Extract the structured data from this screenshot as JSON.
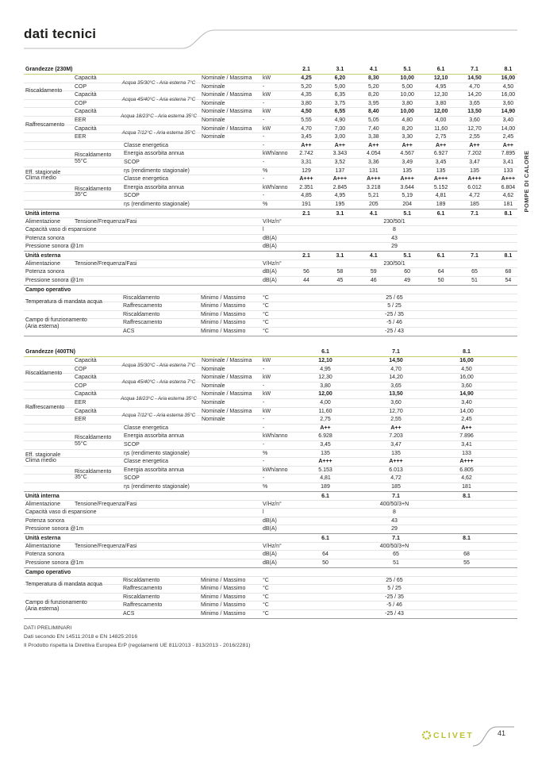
{
  "page": {
    "title": "dati tecnici",
    "side_tab": "POMPE DI CALORE",
    "brand": "CLIVET",
    "page_number": "41",
    "accent_color": "#bcc22f",
    "notes": [
      "DATI PRELIMINARI",
      "Dati secondo EN 14511:2018 e EN 14825:2016",
      "Il Prodotto rispetta la Direttiva Europea ErP (regolamenti UE 811/2013 - 813/2013 - 2016/2281)"
    ]
  },
  "tables": [
    {
      "title": "Grandezze (230M)",
      "columns": [
        "2.1",
        "3.1",
        "4.1",
        "5.1",
        "6.1",
        "7.1",
        "8.1"
      ],
      "groups": [
        "Riscaldamento",
        "Raffrescamento"
      ],
      "conditions": [
        "Acqua 35/30°C - Aria esterna 7°C",
        "Acqua 45/40°C - Aria esterna 7°C",
        "Acqua 18/23°C - Aria esterna 35°C",
        "Acqua 7/12°C - Aria esterna 35°C"
      ],
      "perf_rows": [
        {
          "prop": "Capacità",
          "mode": "Nominale / Massima",
          "unit": "kW",
          "bold": true,
          "values": [
            "4,25",
            "6,20",
            "8,30",
            "10,00",
            "12,10",
            "14,50",
            "16,00"
          ]
        },
        {
          "prop": "COP",
          "mode": "Nominale",
          "unit": "-",
          "bold": false,
          "values": [
            "5,20",
            "5,00",
            "5,20",
            "5,00",
            "4,95",
            "4,70",
            "4,50"
          ]
        },
        {
          "prop": "Capacità",
          "mode": "Nominale / Massima",
          "unit": "kW",
          "bold": false,
          "values": [
            "4,35",
            "6,35",
            "8,20",
            "10,00",
            "12,30",
            "14,20",
            "16,00"
          ]
        },
        {
          "prop": "COP",
          "mode": "Nominale",
          "unit": "-",
          "bold": false,
          "values": [
            "3,80",
            "3,75",
            "3,95",
            "3,80",
            "3,80",
            "3,65",
            "3,60"
          ]
        },
        {
          "prop": "Capacità",
          "mode": "Nominale / Massima",
          "unit": "kW",
          "bold": true,
          "values": [
            "4,50",
            "6,55",
            "8,40",
            "10,00",
            "12,00",
            "13,50",
            "14,90"
          ]
        },
        {
          "prop": "EER",
          "mode": "Nominale",
          "unit": "-",
          "bold": false,
          "values": [
            "5,55",
            "4,90",
            "5,05",
            "4,80",
            "4,00",
            "3,60",
            "3,40"
          ]
        },
        {
          "prop": "Capacità",
          "mode": "Nominale / Massima",
          "unit": "kW",
          "bold": false,
          "values": [
            "4,70",
            "7,00",
            "7,40",
            "8,20",
            "11,60",
            "12,70",
            "14,00"
          ]
        },
        {
          "prop": "EER",
          "mode": "Nominale",
          "unit": "-",
          "bold": false,
          "values": [
            "3,45",
            "3,00",
            "3,38",
            "3,30",
            "2,75",
            "2,55",
            "2,45"
          ]
        }
      ],
      "seasonal": {
        "group": [
          "Eff. stagionale",
          "Clima medio"
        ],
        "subgroups": [
          [
            "Riscaldamento",
            "55°C"
          ],
          [
            "Riscaldamento",
            "35°C"
          ]
        ],
        "rows": [
          {
            "prop": "Classe energetica",
            "unit": "-",
            "bold": true,
            "values": [
              "A++",
              "A++",
              "A++",
              "A++",
              "A++",
              "A++",
              "A++"
            ]
          },
          {
            "prop": "Energia assorbita annua",
            "unit": "kWh/anno",
            "bold": false,
            "values": [
              "2.742",
              "3.343",
              "4.054",
              "4.567",
              "6.927",
              "7.202",
              "7.895"
            ]
          },
          {
            "prop": "SCOP",
            "unit": "-",
            "bold": false,
            "values": [
              "3,31",
              "3,52",
              "3,36",
              "3,49",
              "3,45",
              "3,47",
              "3,41"
            ]
          },
          {
            "prop": "ηs (rendimento stagionale)",
            "unit": "%",
            "bold": false,
            "values": [
              "129",
              "137",
              "131",
              "135",
              "135",
              "135",
              "133"
            ]
          },
          {
            "prop": "Classe energetica",
            "unit": "-",
            "bold": true,
            "values": [
              "A+++",
              "A+++",
              "A+++",
              "A+++",
              "A+++",
              "A+++",
              "A+++"
            ]
          },
          {
            "prop": "Energia assorbita annua",
            "unit": "kWh/anno",
            "bold": false,
            "values": [
              "2.351",
              "2.845",
              "3.218",
              "3.644",
              "5.152",
              "6.012",
              "6.804"
            ]
          },
          {
            "prop": "SCOP",
            "unit": "-",
            "bold": false,
            "values": [
              "4,85",
              "4,95",
              "5,21",
              "5,19",
              "4,81",
              "4,72",
              "4,62"
            ]
          },
          {
            "prop": "ηs (rendimento stagionale)",
            "unit": "%",
            "bold": false,
            "values": [
              "191",
              "195",
              "205",
              "204",
              "189",
              "185",
              "181"
            ]
          }
        ]
      },
      "unita_interna": {
        "header": "Unità interna",
        "rows": [
          {
            "label": "Alimentazione",
            "label2": "Tensione/Frequenza/Fasi",
            "unit": "V/Hz/n°",
            "center": "230/50/1"
          },
          {
            "label": "Capacità vaso di espansione",
            "unit": "l",
            "center": "8"
          },
          {
            "label": "Potenza sonora",
            "unit": "dB(A)",
            "center": "43"
          },
          {
            "label": "Pressione sonora @1m",
            "unit": "dB(A)",
            "center": "29"
          }
        ]
      },
      "unita_esterna": {
        "header": "Unità esterna",
        "rows": [
          {
            "label": "Alimentazione",
            "label2": "Tensione/Frequenza/Fasi",
            "unit": "V/Hz/n°",
            "center": "230/50/1"
          },
          {
            "label": "Potenza sonora",
            "unit": "dB(A)",
            "values": [
              "56",
              "58",
              "59",
              "60",
              "64",
              "65",
              "68"
            ]
          },
          {
            "label": "Pressione sonora @1m",
            "unit": "dB(A)",
            "values": [
              "44",
              "45",
              "46",
              "49",
              "50",
              "51",
              "54"
            ]
          }
        ]
      },
      "campo_operativo": {
        "header": "Campo operativo",
        "groups": [
          {
            "label": [
              "Temperatura di mandata acqua"
            ],
            "rows": [
              {
                "name": "Riscaldamento",
                "range": "Minimo / Massimo",
                "unit": "°C",
                "value": "25 / 65"
              },
              {
                "name": "Raffrescamento",
                "range": "Minimo / Massimo",
                "unit": "°C",
                "value": "5 / 25"
              }
            ]
          },
          {
            "label": [
              "Campo di funzionamento",
              "(Aria esterna)"
            ],
            "rows": [
              {
                "name": "Riscaldamento",
                "range": "Minimo / Massimo",
                "unit": "°C",
                "value": "-25 / 35"
              },
              {
                "name": "Raffrescamento",
                "range": "Minimo / Massimo",
                "unit": "°C",
                "value": "-5 / 46"
              },
              {
                "name": "ACS",
                "range": "Minimo / Massimo",
                "unit": "°C",
                "value": "-25 / 43"
              }
            ]
          }
        ]
      }
    },
    {
      "title": "Grandezze (400TN)",
      "columns": [
        "6.1",
        "7.1",
        "8.1"
      ],
      "groups": [
        "Riscaldamento",
        "Raffrescamento"
      ],
      "conditions": [
        "Acqua 35/30°C - Aria esterna 7°C",
        "Acqua 45/40°C - Aria esterna 7°C",
        "Acqua 18/23°C - Aria esterna 35°C",
        "Acqua 7/12°C - Aria esterna 35°C"
      ],
      "perf_rows": [
        {
          "prop": "Capacità",
          "mode": "Nominale / Massima",
          "unit": "kW",
          "bold": true,
          "values": [
            "12,10",
            "14,50",
            "16,00"
          ]
        },
        {
          "prop": "COP",
          "mode": "Nominale",
          "unit": "-",
          "bold": false,
          "values": [
            "4,95",
            "4,70",
            "4,50"
          ]
        },
        {
          "prop": "Capacità",
          "mode": "Nominale / Massima",
          "unit": "kW",
          "bold": false,
          "values": [
            "12,30",
            "14,20",
            "16,00"
          ]
        },
        {
          "prop": "COP",
          "mode": "Nominale",
          "unit": "-",
          "bold": false,
          "values": [
            "3,80",
            "3,65",
            "3,60"
          ]
        },
        {
          "prop": "Capacità",
          "mode": "Nominale / Massima",
          "unit": "kW",
          "bold": true,
          "values": [
            "12,00",
            "13,50",
            "14,90"
          ]
        },
        {
          "prop": "EER",
          "mode": "Nominale",
          "unit": "-",
          "bold": false,
          "values": [
            "4,00",
            "3,60",
            "3,40"
          ]
        },
        {
          "prop": "Capacità",
          "mode": "Nominale / Massima",
          "unit": "kW",
          "bold": false,
          "values": [
            "11,60",
            "12,70",
            "14,00"
          ]
        },
        {
          "prop": "EER",
          "mode": "Nominale",
          "unit": "-",
          "bold": false,
          "values": [
            "2,75",
            "2,55",
            "2,45"
          ]
        }
      ],
      "seasonal": {
        "group": [
          "Eff. stagionale",
          "Clima medio"
        ],
        "subgroups": [
          [
            "Riscaldamento",
            "55°C"
          ],
          [
            "Riscaldamento",
            "35°C"
          ]
        ],
        "rows": [
          {
            "prop": "Classe energetica",
            "unit": "-",
            "bold": true,
            "values": [
              "A++",
              "A++",
              "A++"
            ]
          },
          {
            "prop": "Energia assorbita annua",
            "unit": "kWh/anno",
            "bold": false,
            "values": [
              "6.928",
              "7.203",
              "7.896"
            ]
          },
          {
            "prop": "SCOP",
            "unit": "-",
            "bold": false,
            "values": [
              "3,45",
              "3,47",
              "3,41"
            ]
          },
          {
            "prop": "ηs (rendimento stagionale)",
            "unit": "%",
            "bold": false,
            "values": [
              "135",
              "135",
              "133"
            ]
          },
          {
            "prop": "Classe energetica",
            "unit": "-",
            "bold": true,
            "values": [
              "A+++",
              "A+++",
              "A+++"
            ]
          },
          {
            "prop": "Energia assorbita annua",
            "unit": "kWh/anno",
            "bold": false,
            "values": [
              "5.153",
              "6.013",
              "6.805"
            ]
          },
          {
            "prop": "SCOP",
            "unit": "-",
            "bold": false,
            "values": [
              "4,81",
              "4,72",
              "4,62"
            ]
          },
          {
            "prop": "ηs (rendimento stagionale)",
            "unit": "%",
            "bold": false,
            "values": [
              "189",
              "185",
              "181"
            ]
          }
        ]
      },
      "unita_interna": {
        "header": "Unità interna",
        "rows": [
          {
            "label": "Alimentazione",
            "label2": "Tensione/Frequenza/Fasi",
            "unit": "V/Hz/n°",
            "center": "400/50/3+N"
          },
          {
            "label": "Capacità vaso di espansione",
            "unit": "l",
            "center": "8"
          },
          {
            "label": "Potenza sonora",
            "unit": "dB(A)",
            "center": "43"
          },
          {
            "label": "Pressione sonora @1m",
            "unit": "dB(A)",
            "center": "29"
          }
        ]
      },
      "unita_esterna": {
        "header": "Unità esterna",
        "rows": [
          {
            "label": "Alimentazione",
            "label2": "Tensione/Frequenza/Fasi",
            "unit": "V/Hz/n°",
            "center": "400/50/3+N"
          },
          {
            "label": "Potenza sonora",
            "unit": "dB(A)",
            "values": [
              "64",
              "65",
              "68"
            ]
          },
          {
            "label": "Pressione sonora @1m",
            "unit": "dB(A)",
            "values": [
              "50",
              "51",
              "55"
            ]
          }
        ]
      },
      "campo_operativo": {
        "header": "Campo operativo",
        "groups": [
          {
            "label": [
              "Temperatura di mandata acqua"
            ],
            "rows": [
              {
                "name": "Riscaldamento",
                "range": "Minimo / Massimo",
                "unit": "°C",
                "value": "25 / 65"
              },
              {
                "name": "Raffrescamento",
                "range": "Minimo / Massimo",
                "unit": "°C",
                "value": "5 / 25"
              }
            ]
          },
          {
            "label": [
              "Campo di funzionamento",
              "(Aria esterna)"
            ],
            "rows": [
              {
                "name": "Riscaldamento",
                "range": "Minimo / Massimo",
                "unit": "°C",
                "value": "-25 / 35"
              },
              {
                "name": "Raffrescamento",
                "range": "Minimo / Massimo",
                "unit": "°C",
                "value": "-5 / 46"
              },
              {
                "name": "ACS",
                "range": "Minimo / Massimo",
                "unit": "°C",
                "value": "-25 / 43"
              }
            ]
          }
        ]
      }
    }
  ]
}
